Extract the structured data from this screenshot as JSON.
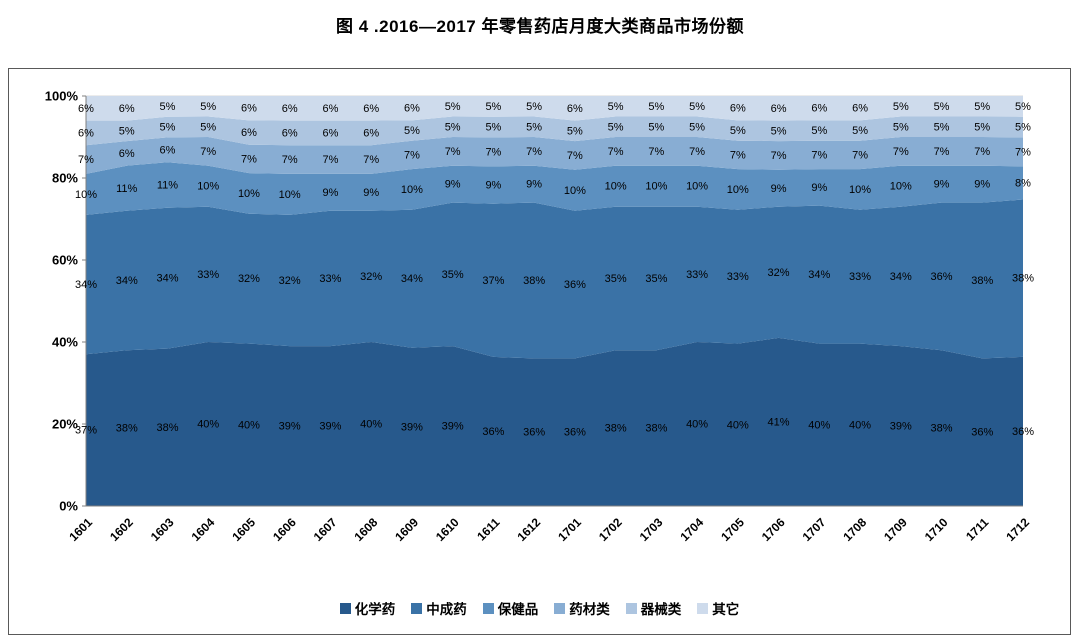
{
  "title": "图 4 .2016—2017 年零售药店月度大类商品市场份额",
  "chart_data": {
    "type": "area",
    "stacked": true,
    "percent_stacked": true,
    "title": "图 4 .2016—2017 年零售药店月度大类商品市场份额",
    "xlabel": "",
    "ylabel": "",
    "ylim": [
      0,
      100
    ],
    "y_ticks": [
      0,
      20,
      40,
      60,
      80,
      100
    ],
    "y_tick_suffix": "%",
    "grid": true,
    "legend_position": "bottom",
    "categories": [
      "1601",
      "1602",
      "1603",
      "1604",
      "1605",
      "1606",
      "1607",
      "1608",
      "1609",
      "1610",
      "1611",
      "1612",
      "1701",
      "1702",
      "1703",
      "1704",
      "1705",
      "1706",
      "1707",
      "1708",
      "1709",
      "1710",
      "1711",
      "1712"
    ],
    "series": [
      {
        "name": "化学药",
        "color": "#27598C",
        "values": [
          37,
          38,
          38,
          40,
          40,
          39,
          39,
          40,
          39,
          39,
          36,
          36,
          36,
          38,
          38,
          40,
          40,
          41,
          40,
          40,
          39,
          38,
          36,
          36
        ]
      },
      {
        "name": "中成药",
        "color": "#3A72A6",
        "values": [
          34,
          34,
          34,
          33,
          32,
          32,
          33,
          32,
          34,
          35,
          37,
          38,
          36,
          35,
          35,
          33,
          33,
          32,
          34,
          33,
          34,
          36,
          38,
          38
        ]
      },
      {
        "name": "保健品",
        "color": "#5C90C0",
        "values": [
          10,
          11,
          11,
          10,
          10,
          10,
          9,
          9,
          10,
          9,
          9,
          9,
          10,
          10,
          10,
          10,
          10,
          9,
          9,
          10,
          10,
          9,
          9,
          8
        ]
      },
      {
        "name": "药材类",
        "color": "#88ADD3",
        "values": [
          7,
          6,
          6,
          7,
          7,
          7,
          7,
          7,
          7,
          7,
          7,
          7,
          7,
          7,
          7,
          7,
          7,
          7,
          7,
          7,
          7,
          7,
          7,
          7
        ]
      },
      {
        "name": "器械类",
        "color": "#ADC5E0",
        "values": [
          6,
          5,
          5,
          5,
          6,
          6,
          6,
          6,
          5,
          5,
          5,
          5,
          5,
          5,
          5,
          5,
          5,
          5,
          5,
          5,
          5,
          5,
          5,
          5
        ]
      },
      {
        "name": "其它",
        "color": "#CEDBEC",
        "values": [
          6,
          6,
          5,
          5,
          6,
          6,
          6,
          6,
          6,
          5,
          5,
          5,
          6,
          5,
          5,
          5,
          6,
          6,
          6,
          6,
          5,
          5,
          5,
          5
        ]
      }
    ],
    "label_suffix": "%",
    "colors": {
      "gridline": "#D9D9D9",
      "axis": "#808080",
      "label": "#000000",
      "border": "#595959"
    }
  }
}
